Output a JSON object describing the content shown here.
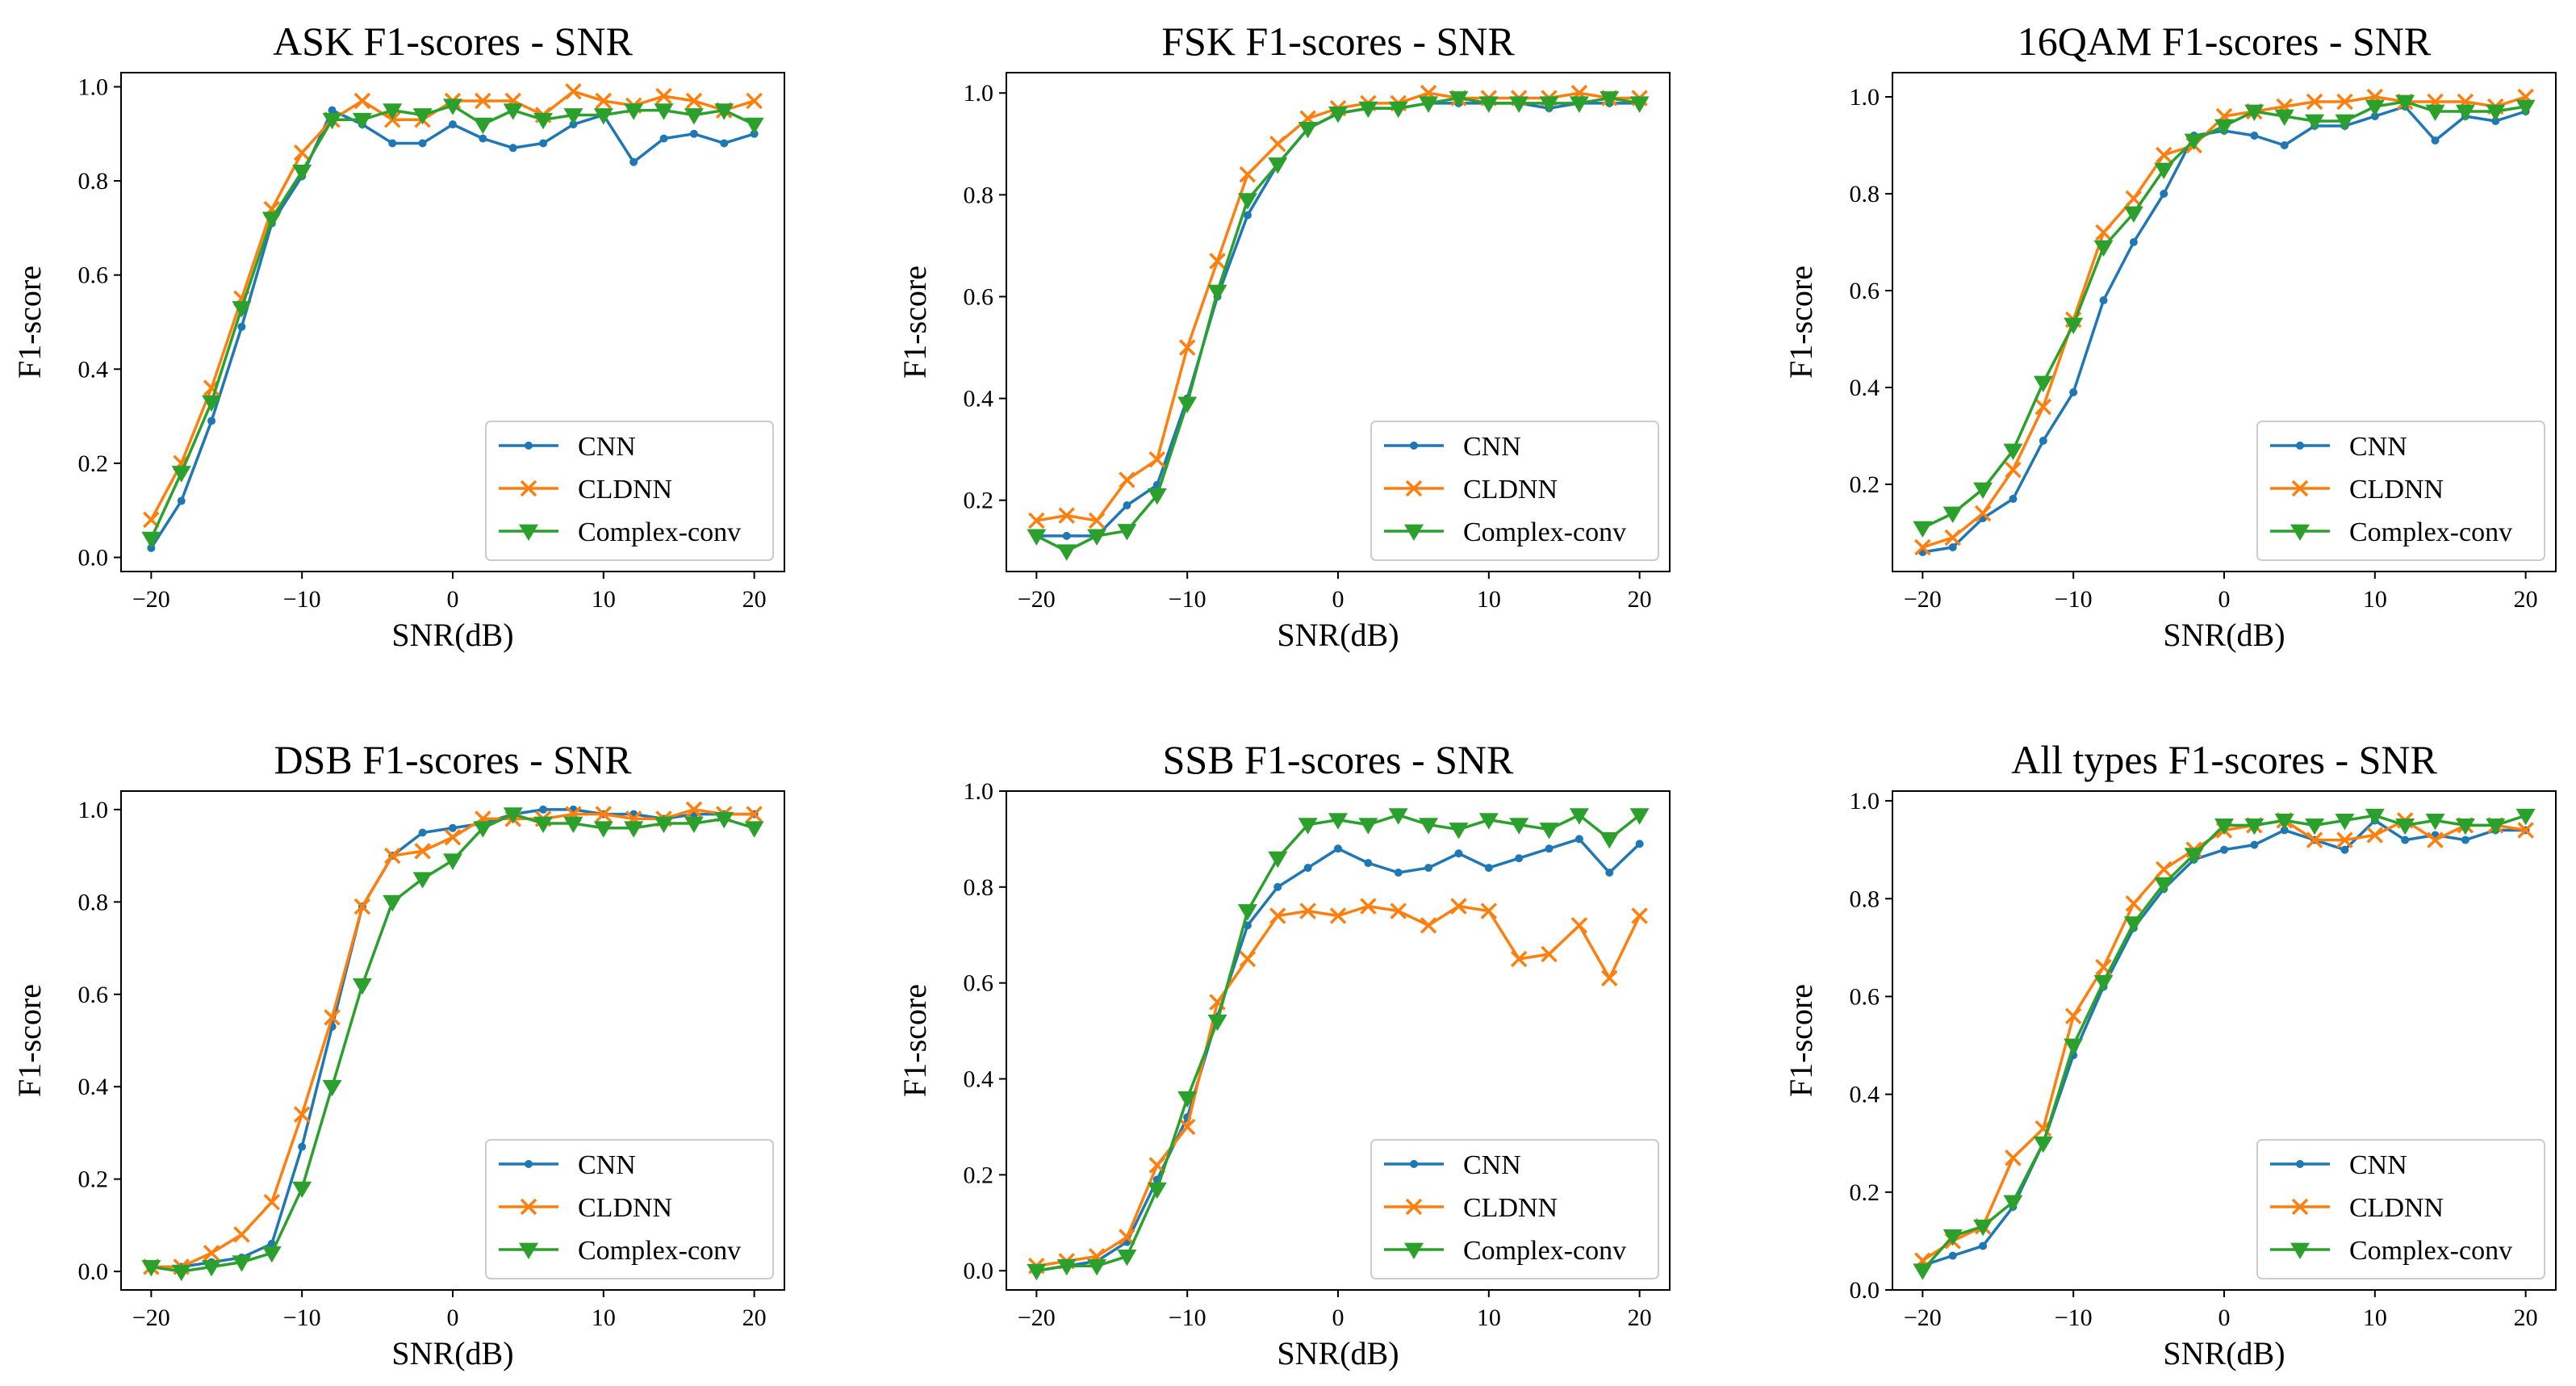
{
  "chart_data": [
    {
      "type": "line",
      "title": "ASK F1-scores - SNR",
      "xlabel": "SNR(dB)",
      "ylabel": "F1-score",
      "xlim": [
        -22,
        22
      ],
      "ylim": [
        -0.03,
        1.03
      ],
      "xticks": [
        -20,
        -10,
        0,
        10,
        20
      ],
      "yticks": [
        0.0,
        0.2,
        0.4,
        0.6,
        0.8,
        1.0
      ],
      "ytick_labels": [
        "0.0",
        "0.2",
        "0.4",
        "0.6",
        "0.8",
        "1.0"
      ],
      "xtick_labels": [
        "−20",
        "−10",
        "0",
        "10",
        "20"
      ],
      "legend": "lower-right",
      "x": [
        -20,
        -18,
        -16,
        -14,
        -12,
        -10,
        -8,
        -6,
        -4,
        -2,
        0,
        2,
        4,
        6,
        8,
        10,
        12,
        14,
        16,
        18,
        20
      ],
      "series": [
        {
          "name": "CNN",
          "color": "#1f77b4",
          "marker": "dot",
          "values": [
            0.02,
            0.12,
            0.29,
            0.49,
            0.71,
            0.81,
            0.95,
            0.92,
            0.88,
            0.88,
            0.92,
            0.89,
            0.87,
            0.88,
            0.92,
            0.94,
            0.84,
            0.89,
            0.9,
            0.88,
            0.9
          ]
        },
        {
          "name": "CLDNN",
          "color": "#ff7f0e",
          "marker": "x",
          "values": [
            0.08,
            0.2,
            0.36,
            0.55,
            0.74,
            0.86,
            0.93,
            0.97,
            0.93,
            0.93,
            0.97,
            0.97,
            0.97,
            0.94,
            0.99,
            0.97,
            0.96,
            0.98,
            0.97,
            0.95,
            0.97
          ]
        },
        {
          "name": "Complex-conv",
          "color": "#2ca02c",
          "marker": "tri",
          "values": [
            0.04,
            0.18,
            0.33,
            0.53,
            0.72,
            0.82,
            0.93,
            0.93,
            0.95,
            0.94,
            0.96,
            0.92,
            0.95,
            0.93,
            0.94,
            0.94,
            0.95,
            0.95,
            0.94,
            0.95,
            0.92
          ]
        }
      ]
    },
    {
      "type": "line",
      "title": "FSK F1-scores - SNR",
      "xlabel": "SNR(dB)",
      "ylabel": "F1-score",
      "xlim": [
        -22,
        22
      ],
      "ylim": [
        0.06,
        1.04
      ],
      "xticks": [
        -20,
        -10,
        0,
        10,
        20
      ],
      "yticks": [
        0.2,
        0.4,
        0.6,
        0.8,
        1.0
      ],
      "ytick_labels": [
        "0.2",
        "0.4",
        "0.6",
        "0.8",
        "1.0"
      ],
      "xtick_labels": [
        "−20",
        "−10",
        "0",
        "10",
        "20"
      ],
      "legend": "lower-right",
      "x": [
        -20,
        -18,
        -16,
        -14,
        -12,
        -10,
        -8,
        -6,
        -4,
        -2,
        0,
        2,
        4,
        6,
        8,
        10,
        12,
        14,
        16,
        18,
        20
      ],
      "series": [
        {
          "name": "CNN",
          "color": "#1f77b4",
          "marker": "dot",
          "values": [
            0.13,
            0.13,
            0.13,
            0.19,
            0.23,
            0.4,
            0.6,
            0.76,
            0.86,
            0.93,
            0.96,
            0.97,
            0.97,
            0.98,
            0.98,
            0.98,
            0.98,
            0.97,
            0.98,
            0.98,
            0.98
          ]
        },
        {
          "name": "CLDNN",
          "color": "#ff7f0e",
          "marker": "x",
          "values": [
            0.16,
            0.17,
            0.16,
            0.24,
            0.28,
            0.5,
            0.67,
            0.84,
            0.9,
            0.95,
            0.97,
            0.98,
            0.98,
            1.0,
            0.99,
            0.99,
            0.99,
            0.99,
            1.0,
            0.99,
            0.99
          ]
        },
        {
          "name": "Complex-conv",
          "color": "#2ca02c",
          "marker": "tri",
          "values": [
            0.13,
            0.1,
            0.13,
            0.14,
            0.21,
            0.39,
            0.61,
            0.79,
            0.86,
            0.93,
            0.96,
            0.97,
            0.97,
            0.98,
            0.99,
            0.98,
            0.98,
            0.98,
            0.98,
            0.99,
            0.98
          ]
        }
      ]
    },
    {
      "type": "line",
      "title": "16QAM F1-scores - SNR",
      "xlabel": "SNR(dB)",
      "ylabel": "F1-score",
      "xlim": [
        -22,
        22
      ],
      "ylim": [
        0.02,
        1.05
      ],
      "xticks": [
        -20,
        -10,
        0,
        10,
        20
      ],
      "yticks": [
        0.2,
        0.4,
        0.6,
        0.8,
        1.0
      ],
      "ytick_labels": [
        "0.2",
        "0.4",
        "0.6",
        "0.8",
        "1.0"
      ],
      "xtick_labels": [
        "−20",
        "−10",
        "0",
        "10",
        "20"
      ],
      "legend": "lower-right",
      "x": [
        -20,
        -18,
        -16,
        -14,
        -12,
        -10,
        -8,
        -6,
        -4,
        -2,
        0,
        2,
        4,
        6,
        8,
        10,
        12,
        14,
        16,
        18,
        20
      ],
      "series": [
        {
          "name": "CNN",
          "color": "#1f77b4",
          "marker": "dot",
          "values": [
            0.06,
            0.07,
            0.13,
            0.17,
            0.29,
            0.39,
            0.58,
            0.7,
            0.8,
            0.92,
            0.93,
            0.92,
            0.9,
            0.94,
            0.94,
            0.96,
            0.98,
            0.91,
            0.96,
            0.95,
            0.97
          ]
        },
        {
          "name": "CLDNN",
          "color": "#ff7f0e",
          "marker": "x",
          "values": [
            0.07,
            0.09,
            0.14,
            0.23,
            0.36,
            0.54,
            0.72,
            0.79,
            0.88,
            0.9,
            0.96,
            0.97,
            0.98,
            0.99,
            0.99,
            1.0,
            0.99,
            0.99,
            0.99,
            0.98,
            1.0
          ]
        },
        {
          "name": "Complex-conv",
          "color": "#2ca02c",
          "marker": "tri",
          "values": [
            0.11,
            0.14,
            0.19,
            0.27,
            0.41,
            0.53,
            0.69,
            0.76,
            0.85,
            0.91,
            0.94,
            0.97,
            0.96,
            0.95,
            0.95,
            0.98,
            0.99,
            0.97,
            0.97,
            0.97,
            0.98
          ]
        }
      ]
    },
    {
      "type": "line",
      "title": "DSB F1-scores - SNR",
      "xlabel": "SNR(dB)",
      "ylabel": "F1-score",
      "xlim": [
        -22,
        22
      ],
      "ylim": [
        -0.04,
        1.04
      ],
      "xticks": [
        -20,
        -10,
        0,
        10,
        20
      ],
      "yticks": [
        0.0,
        0.2,
        0.4,
        0.6,
        0.8,
        1.0
      ],
      "ytick_labels": [
        "0.0",
        "0.2",
        "0.4",
        "0.6",
        "0.8",
        "1.0"
      ],
      "xtick_labels": [
        "−20",
        "−10",
        "0",
        "10",
        "20"
      ],
      "legend": "lower-right",
      "x": [
        -20,
        -18,
        -16,
        -14,
        -12,
        -10,
        -8,
        -6,
        -4,
        -2,
        0,
        2,
        4,
        6,
        8,
        10,
        12,
        14,
        16,
        18,
        20
      ],
      "series": [
        {
          "name": "CNN",
          "color": "#1f77b4",
          "marker": "dot",
          "values": [
            0.01,
            0.01,
            0.02,
            0.03,
            0.06,
            0.27,
            0.53,
            0.79,
            0.9,
            0.95,
            0.96,
            0.97,
            0.99,
            1.0,
            1.0,
            0.99,
            0.99,
            0.98,
            0.99,
            0.99,
            0.99
          ]
        },
        {
          "name": "CLDNN",
          "color": "#ff7f0e",
          "marker": "x",
          "values": [
            0.01,
            0.01,
            0.04,
            0.08,
            0.15,
            0.34,
            0.55,
            0.79,
            0.9,
            0.91,
            0.94,
            0.98,
            0.98,
            0.98,
            0.99,
            0.99,
            0.98,
            0.98,
            1.0,
            0.99,
            0.99
          ]
        },
        {
          "name": "Complex-conv",
          "color": "#2ca02c",
          "marker": "tri",
          "values": [
            0.01,
            0.0,
            0.01,
            0.02,
            0.04,
            0.18,
            0.4,
            0.62,
            0.8,
            0.85,
            0.89,
            0.96,
            0.99,
            0.97,
            0.97,
            0.96,
            0.96,
            0.97,
            0.97,
            0.98,
            0.96
          ]
        }
      ]
    },
    {
      "type": "line",
      "title": "SSB F1-scores - SNR",
      "xlabel": "SNR(dB)",
      "ylabel": "F1-score",
      "xlim": [
        -22,
        22
      ],
      "ylim": [
        -0.04,
        1.0
      ],
      "xticks": [
        -20,
        -10,
        0,
        10,
        20
      ],
      "yticks": [
        0.0,
        0.2,
        0.4,
        0.6,
        0.8,
        1.0
      ],
      "ytick_labels": [
        "0.0",
        "0.2",
        "0.4",
        "0.6",
        "0.8",
        "1.0"
      ],
      "xtick_labels": [
        "−20",
        "−10",
        "0",
        "10",
        "20"
      ],
      "legend": "lower-right",
      "x": [
        -20,
        -18,
        -16,
        -14,
        -12,
        -10,
        -8,
        -6,
        -4,
        -2,
        0,
        2,
        4,
        6,
        8,
        10,
        12,
        14,
        16,
        18,
        20
      ],
      "series": [
        {
          "name": "CNN",
          "color": "#1f77b4",
          "marker": "dot",
          "values": [
            0.0,
            0.01,
            0.02,
            0.06,
            0.19,
            0.32,
            0.53,
            0.72,
            0.8,
            0.84,
            0.88,
            0.85,
            0.83,
            0.84,
            0.87,
            0.84,
            0.86,
            0.88,
            0.9,
            0.83,
            0.89
          ]
        },
        {
          "name": "CLDNN",
          "color": "#ff7f0e",
          "marker": "x",
          "values": [
            0.01,
            0.02,
            0.03,
            0.07,
            0.22,
            0.3,
            0.56,
            0.65,
            0.74,
            0.75,
            0.74,
            0.76,
            0.75,
            0.72,
            0.76,
            0.75,
            0.65,
            0.66,
            0.72,
            0.61,
            0.74
          ]
        },
        {
          "name": "Complex-conv",
          "color": "#2ca02c",
          "marker": "tri",
          "values": [
            0.0,
            0.01,
            0.01,
            0.03,
            0.17,
            0.36,
            0.52,
            0.75,
            0.86,
            0.93,
            0.94,
            0.93,
            0.95,
            0.93,
            0.92,
            0.94,
            0.93,
            0.92,
            0.95,
            0.9,
            0.95
          ]
        }
      ]
    },
    {
      "type": "line",
      "title": "All types F1-scores - SNR",
      "xlabel": "SNR(dB)",
      "ylabel": "F1-score",
      "xlim": [
        -22,
        22
      ],
      "ylim": [
        0.0,
        1.02
      ],
      "xticks": [
        -20,
        -10,
        0,
        10,
        20
      ],
      "yticks": [
        0.0,
        0.2,
        0.4,
        0.6,
        0.8,
        1.0
      ],
      "ytick_labels": [
        "0.0",
        "0.2",
        "0.4",
        "0.6",
        "0.8",
        "1.0"
      ],
      "xtick_labels": [
        "−20",
        "−10",
        "0",
        "10",
        "20"
      ],
      "legend": "lower-right",
      "x": [
        -20,
        -18,
        -16,
        -14,
        -12,
        -10,
        -8,
        -6,
        -4,
        -2,
        0,
        2,
        4,
        6,
        8,
        10,
        12,
        14,
        16,
        18,
        20
      ],
      "series": [
        {
          "name": "CNN",
          "color": "#1f77b4",
          "marker": "dot",
          "values": [
            0.05,
            0.07,
            0.09,
            0.17,
            0.3,
            0.48,
            0.62,
            0.74,
            0.82,
            0.88,
            0.9,
            0.91,
            0.94,
            0.92,
            0.9,
            0.96,
            0.92,
            0.93,
            0.92,
            0.94,
            0.94
          ]
        },
        {
          "name": "CLDNN",
          "color": "#ff7f0e",
          "marker": "x",
          "values": [
            0.06,
            0.1,
            0.13,
            0.27,
            0.33,
            0.56,
            0.66,
            0.79,
            0.86,
            0.9,
            0.94,
            0.95,
            0.96,
            0.92,
            0.92,
            0.93,
            0.96,
            0.92,
            0.95,
            0.95,
            0.94
          ]
        },
        {
          "name": "Complex-conv",
          "color": "#2ca02c",
          "marker": "tri",
          "values": [
            0.04,
            0.11,
            0.13,
            0.18,
            0.3,
            0.5,
            0.63,
            0.75,
            0.83,
            0.89,
            0.95,
            0.95,
            0.96,
            0.95,
            0.96,
            0.97,
            0.95,
            0.96,
            0.95,
            0.95,
            0.97
          ]
        }
      ]
    }
  ]
}
